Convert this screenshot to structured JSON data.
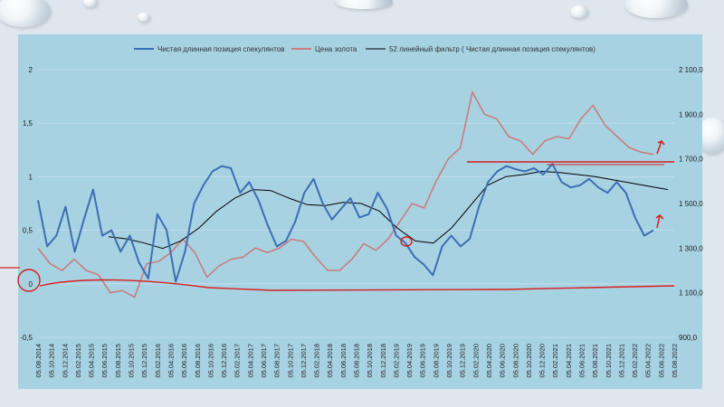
{
  "chart_data": {
    "type": "line",
    "title": "",
    "legend": {
      "placement": "top",
      "entries": [
        "Чистая длинная позиция спекулянтов",
        "Цена золота",
        "52 линейный фильтр ( Чистая длинная позиция спекулянтов)"
      ]
    },
    "y_left": {
      "ticks": [
        "-0,5",
        "0",
        "0,5",
        "1",
        "1,5",
        "2"
      ],
      "range": [
        -0.5,
        2
      ]
    },
    "y_right": {
      "ticks": [
        "900,0",
        "1 100,0",
        "1 300,0",
        "1 500,0",
        "1 700,0",
        "1 900,0",
        "2 100,0"
      ],
      "range": [
        900,
        2100
      ]
    },
    "x_labels": [
      "05.08.2014",
      "05.10.2014",
      "05.12.2014",
      "05.02.2015",
      "05.04.2015",
      "05.06.2015",
      "05.08.2015",
      "05.10.2015",
      "05.12.2015",
      "05.02.2016",
      "05.04.2016",
      "05.06.2016",
      "05.08.2016",
      "05.10.2016",
      "05.12.2016",
      "05.02.2017",
      "05.04.2017",
      "05.06.2017",
      "05.08.2017",
      "05.10.2017",
      "05.12.2017",
      "05.02.2018",
      "05.04.2018",
      "05.06.2018",
      "05.08.2018",
      "05.10.2018",
      "05.12.2018",
      "05.02.2019",
      "05.04.2019",
      "05.06.2019",
      "05.08.2019",
      "05.10.2019",
      "05.12.2019",
      "05.02.2020",
      "05.04.2020",
      "05.06.2020",
      "05.08.2020",
      "05.10.2020",
      "05.12.2020",
      "05.02.2021",
      "05.04.2021",
      "05.06.2021",
      "05.08.2021",
      "05.10.2021",
      "05.12.2021",
      "05.02.2022",
      "05.04.2022",
      "05.06.2022",
      "05.08.2022"
    ],
    "series": [
      {
        "name": "Чистая длинная позиция спекулянтов",
        "axis": "left",
        "color": "#3d6db5",
        "values": [
          0.78,
          0.35,
          0.45,
          0.72,
          0.3,
          0.6,
          0.88,
          0.45,
          0.5,
          0.3,
          0.45,
          0.2,
          0.05,
          0.65,
          0.5,
          0.02,
          0.3,
          0.75,
          0.92,
          1.05,
          1.1,
          1.08,
          0.85,
          0.95,
          0.78,
          0.55,
          0.35,
          0.4,
          0.58,
          0.85,
          0.98,
          0.75,
          0.6,
          0.7,
          0.8,
          0.62,
          0.65,
          0.85,
          0.7,
          0.45,
          0.38,
          0.25,
          0.18,
          0.08,
          0.35,
          0.45,
          0.35,
          0.42,
          0.72,
          0.95,
          1.05,
          1.1,
          1.07,
          1.05,
          1.08,
          1.02,
          1.12,
          0.95,
          0.9,
          0.92,
          0.98,
          0.9,
          0.85,
          0.95,
          0.85,
          0.62,
          0.45,
          0.5
        ]
      },
      {
        "name": "Цена золота",
        "axis": "right",
        "color": "#c97d80",
        "values": [
          1300,
          1230,
          1200,
          1250,
          1200,
          1180,
          1100,
          1110,
          1080,
          1230,
          1240,
          1280,
          1340,
          1280,
          1170,
          1220,
          1250,
          1260,
          1300,
          1280,
          1300,
          1340,
          1330,
          1260,
          1200,
          1200,
          1250,
          1320,
          1290,
          1340,
          1420,
          1500,
          1480,
          1600,
          1700,
          1750,
          2000,
          1900,
          1880,
          1800,
          1780,
          1720,
          1780,
          1800,
          1790,
          1880,
          1940,
          1850,
          1800,
          1750,
          1730,
          1720
        ]
      },
      {
        "name": "52 линейный фильтр ( Чистая длинная позиция спекулянтов)",
        "axis": "left",
        "color": "#000000",
        "values": [
          0.44,
          0.42,
          0.38,
          0.33,
          0.4,
          0.52,
          0.68,
          0.8,
          0.88,
          0.87,
          0.8,
          0.74,
          0.73,
          0.76,
          0.75,
          0.68,
          0.52,
          0.4,
          0.38,
          0.52,
          0.72,
          0.92,
          1.0,
          1.02,
          1.05,
          1.04,
          1.02,
          1.0,
          0.97,
          0.94,
          0.91,
          0.88
        ]
      }
    ],
    "annotations": [
      "red horizontal line near 0",
      "red horizontal line near 1 700,0",
      "red circle near 0",
      "red circle at 2019",
      "red arrows at end of series"
    ]
  }
}
